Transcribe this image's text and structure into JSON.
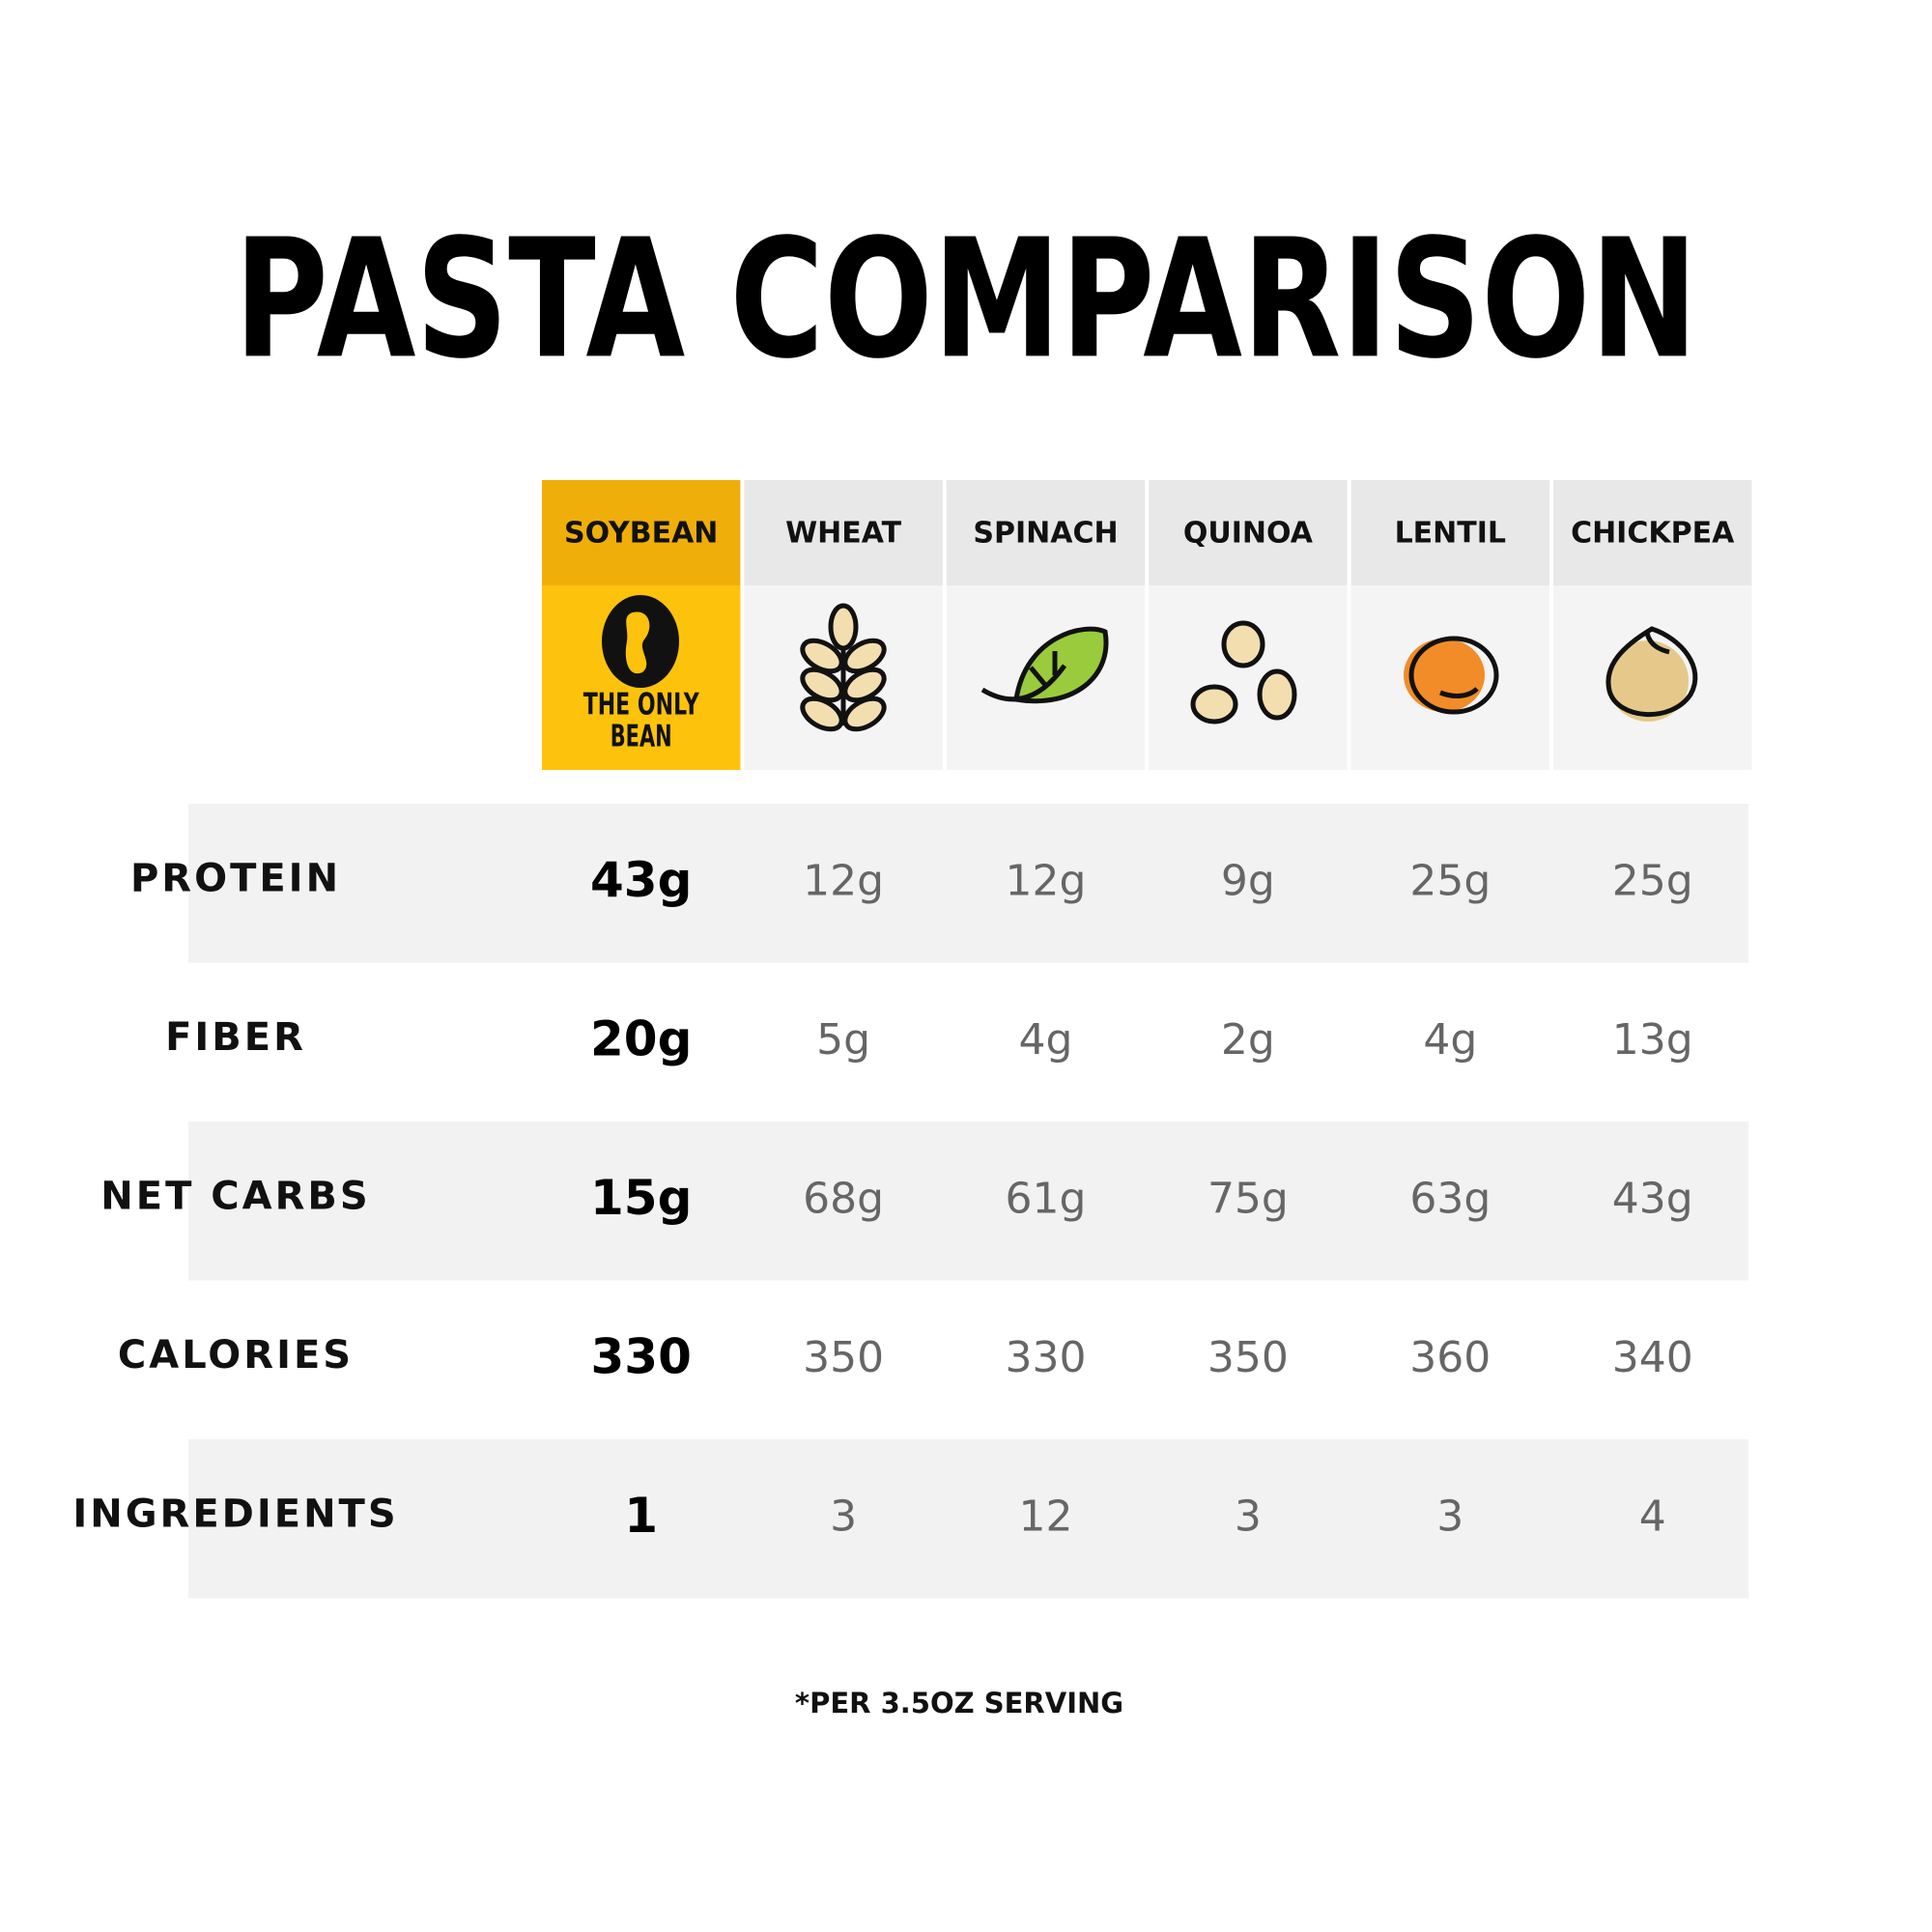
{
  "title": "PASTA COMPARISON",
  "columns": [
    "SOYBEAN",
    "WHEAT",
    "SPINACH",
    "QUINOA",
    "LENTIL",
    "CHICKPEA"
  ],
  "logo": {
    "lines": [
      "THE ONLY",
      "BEAN"
    ]
  },
  "rows": [
    {
      "label": "PROTEIN",
      "values": [
        "43g",
        "12g",
        "12g",
        "9g",
        "25g",
        "25g"
      ]
    },
    {
      "label": "FIBER",
      "values": [
        "20g",
        "5g",
        "4g",
        "2g",
        "4g",
        "13g"
      ]
    },
    {
      "label": "NET CARBS",
      "values": [
        "15g",
        "68g",
        "61g",
        "75g",
        "63g",
        "43g"
      ]
    },
    {
      "label": "CALORIES",
      "values": [
        "330",
        "350",
        "330",
        "350",
        "360",
        "340"
      ]
    },
    {
      "label": "INGREDIENTS",
      "values": [
        "1",
        "3",
        "12",
        "3",
        "3",
        "4"
      ]
    }
  ],
  "footnote": "*PER 3.5OZ SERVING"
}
